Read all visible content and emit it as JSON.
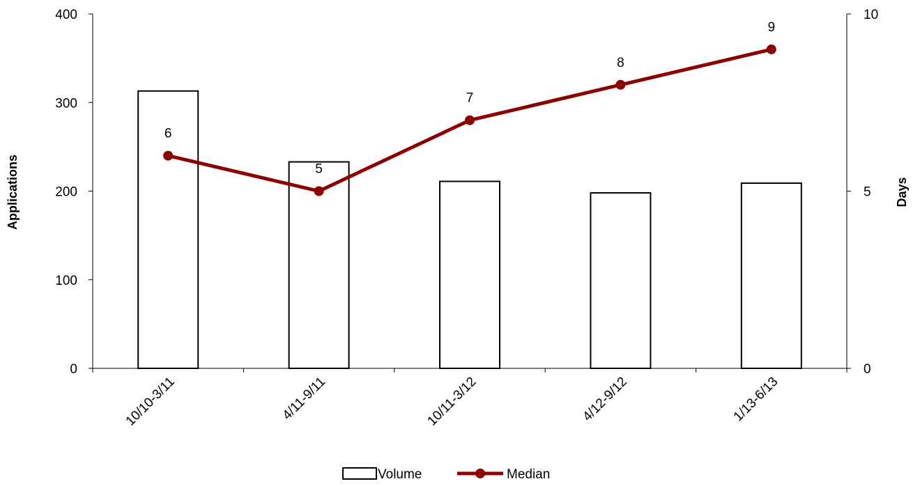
{
  "chart_data": {
    "type": "bar",
    "categories": [
      "10/10-3/11",
      "4/11-9/11",
      "10/11-3/12",
      "4/12-9/12",
      "1/13-6/13"
    ],
    "series": [
      {
        "name": "Volume",
        "type": "bar",
        "axis": "left",
        "values": [
          313,
          233,
          211,
          198,
          209
        ],
        "fill": "#ffffff",
        "stroke": "#000000"
      },
      {
        "name": "Median",
        "type": "line",
        "axis": "right",
        "values": [
          6,
          5,
          7,
          8,
          9
        ],
        "data_labels": [
          "6",
          "5",
          "7",
          "8",
          "9"
        ],
        "color": "#8B0000"
      }
    ],
    "title": "",
    "xlabel": "",
    "ylabel": "Applications",
    "y2label": "Days",
    "ylim": [
      0,
      400
    ],
    "y2lim": [
      0,
      10
    ],
    "yticks": [
      "0",
      "100",
      "200",
      "300",
      "400"
    ],
    "y2ticks": [
      "0",
      "5",
      "10"
    ],
    "grid": false,
    "legend_position": "bottom"
  }
}
